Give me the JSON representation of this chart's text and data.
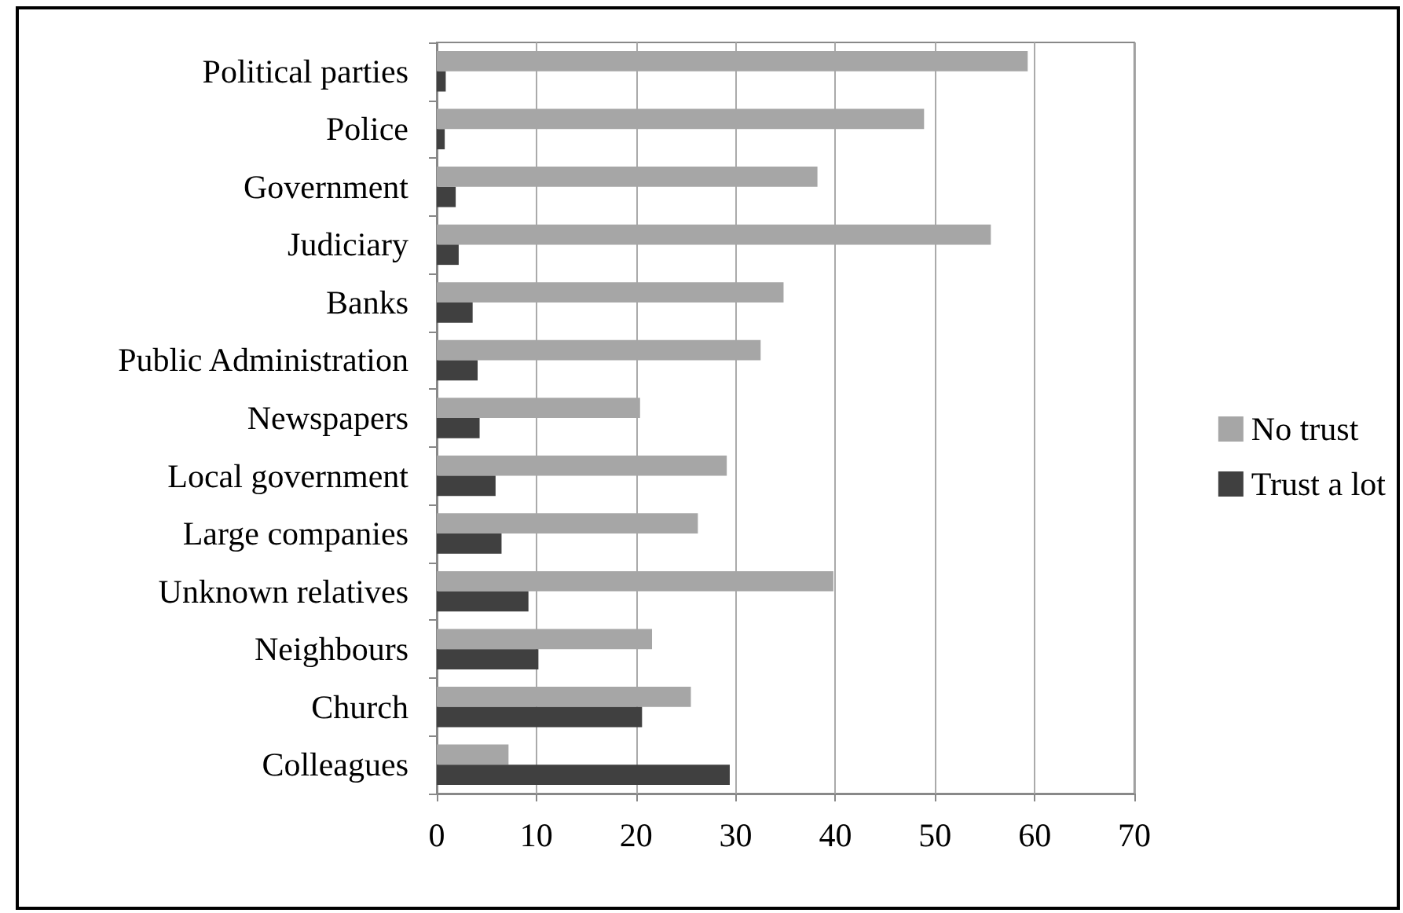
{
  "chart_data": {
    "type": "bar",
    "orientation": "horizontal",
    "categories": [
      "Political parties",
      "Police",
      "Government",
      "Judiciary",
      "Banks",
      "Public Administration",
      "Newspapers",
      "Local government",
      "Large companies",
      "Unknown relatives",
      "Neighbours",
      "Church",
      "Colleagues"
    ],
    "series": [
      {
        "name": "No trust",
        "color": "#a6a6a6",
        "values": [
          59.3,
          48.9,
          38.2,
          55.6,
          34.8,
          32.5,
          20.4,
          29.1,
          26.2,
          39.8,
          21.6,
          25.5,
          7.2
        ]
      },
      {
        "name": "Trust a lot",
        "color": "#404040",
        "values": [
          0.9,
          0.8,
          1.9,
          2.2,
          3.6,
          4.1,
          4.3,
          5.9,
          6.5,
          9.2,
          10.2,
          20.6,
          29.4
        ]
      }
    ],
    "xlim": [
      0,
      70
    ],
    "xticks": [
      0,
      10,
      20,
      30,
      40,
      50,
      60,
      70
    ],
    "grid": "x",
    "legend": "right"
  }
}
